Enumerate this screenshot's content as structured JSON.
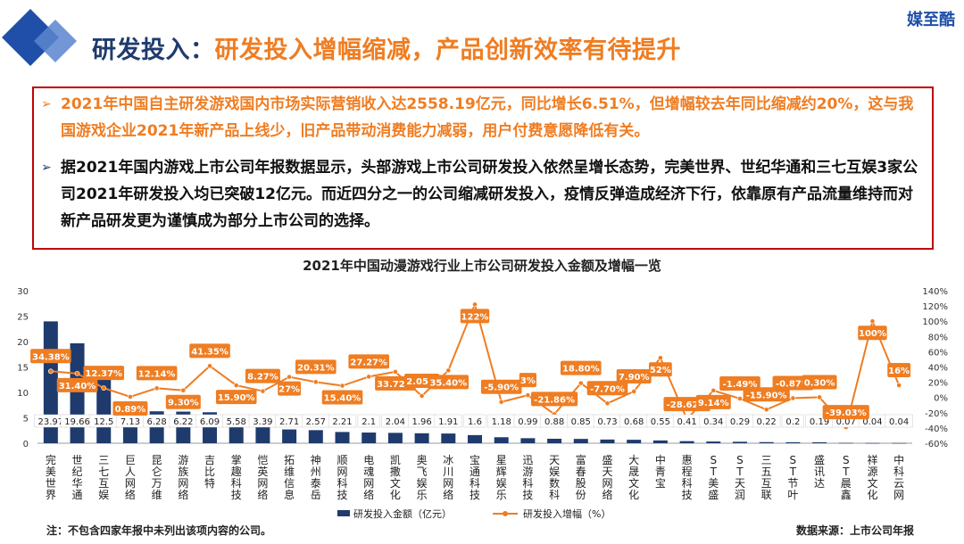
{
  "header": {
    "title_prefix": "研发投入：",
    "title_main": "研发投入增幅缩减，产品创新效率有待提升",
    "brand": "媒至酷"
  },
  "summary": {
    "bullets": [
      {
        "marker": "➢",
        "text": "2021年中国自主研发游戏国内市场实际营销收入达2558.19亿元，同比增长6.51%，但增幅较去年同比缩减约20%，这与我国游戏企业2021年新产品上线少，旧产品带动消费能力减弱，用户付费意愿降低有关。"
      },
      {
        "marker": "➢",
        "text": "据2021年国内游戏上市公司年报数据显示，头部游戏上市公司研发投入依然呈增长态势，完美世界、世纪华通和三七互娱3家公司2021年研发投入均已突破12亿元。而近四分之一的公司缩减研发投入，疫情反弹造成经济下行，依靠原有产品流量维持而对新产品研发更为谨慎成为部分上市公司的选择。"
      }
    ]
  },
  "footer": {
    "note": "注：不包含四家年报中未列出该项内容的公司。",
    "source": "数据来源：上市公司年报"
  },
  "colors": {
    "bar": "#1f3b6e",
    "line": "#ef7d22",
    "accent": "#ef7d22",
    "border": "#c00000"
  },
  "chart_data": {
    "type": "bar",
    "title": "2021年中国动漫游戏行业上市公司研发投入金额及增幅一览",
    "categories": [
      "完美世界",
      "世纪华通",
      "三七互娱",
      "巨人网络",
      "昆仑万维",
      "游族网络",
      "吉比特",
      "掌趣科技",
      "恺英网络",
      "拓维信息",
      "神州泰岳",
      "顺网科技",
      "电魂网络",
      "凯撒文化",
      "奥飞娱乐",
      "冰川网络",
      "宝通科技",
      "星辉娱乐",
      "迅游科技",
      "天娱数科",
      "富春股份",
      "盛天网络",
      "大晟文化",
      "中青宝",
      "惠程科技",
      "ST美盛",
      "ST天润",
      "三五互联",
      "ST节叶",
      "盛讯达",
      "ST晨鑫",
      "祥源文化",
      "中科云网"
    ],
    "series": [
      {
        "name": "研发投入金额（亿元）",
        "type": "bar",
        "axis": "left",
        "values": [
          23.97,
          19.66,
          12.5,
          7.13,
          6.28,
          6.22,
          6.09,
          5.58,
          3.39,
          2.71,
          2.57,
          2.21,
          2.1,
          2.04,
          1.96,
          1.91,
          1.6,
          1.18,
          0.99,
          0.88,
          0.85,
          0.73,
          0.68,
          0.55,
          0.41,
          0.34,
          0.29,
          0.22,
          0.2,
          0.19,
          0.07,
          0.04,
          0.04
        ],
        "labels": [
          "23.97",
          "19.66",
          "12.5",
          "7.13",
          "6.28",
          "6.22",
          "6.09",
          "5.58",
          "3.39",
          "2.71",
          "2.57",
          "2.21",
          "2.1",
          "2.04",
          "1.96",
          "1.91",
          "1.6",
          "1.18",
          "0.99",
          "0.88",
          "0.85",
          "0.73",
          "0.68",
          "0.55",
          "0.41",
          "0.34",
          "0.29",
          "0.22",
          "0.2",
          "0.19",
          "0.07",
          "0.04",
          "0.04"
        ]
      },
      {
        "name": "研发投入增幅（%）",
        "type": "line",
        "axis": "right",
        "values": [
          34.38,
          31.4,
          12.37,
          0.89,
          12.14,
          9.3,
          41.35,
          15.9,
          8.27,
          27,
          20.31,
          15.4,
          27.27,
          33.72,
          2.05,
          35.4,
          122,
          -5.9,
          3,
          -21.86,
          18.8,
          -7.7,
          7.9,
          52,
          -28.62,
          9.14,
          -1.49,
          -15.9,
          -0.87,
          0.3,
          -39.03,
          100,
          16
        ],
        "labels": [
          "34.38%",
          "31.40%",
          "12.37%",
          "0.89%",
          "12.14%",
          "9.30%",
          "41.35%",
          "15.90%",
          "8.27%",
          "27%",
          "20.31%",
          "15.40%",
          "27.27%",
          "33.72%",
          "2.05%",
          "35.40%",
          "122%",
          "-5.90%",
          "3%",
          "-21.86%",
          "18.80%",
          "-7.70%",
          "7.90%",
          "52%",
          "-28.62%",
          "9.14%",
          "-1.49%",
          "-15.90%",
          "-0.87%",
          "0.30%",
          "-39.03%",
          "100%",
          "16%"
        ]
      }
    ],
    "left_axis": {
      "min": 0,
      "max": 30,
      "ticks": [
        "0",
        "5",
        "10",
        "15",
        "20",
        "25",
        "30"
      ]
    },
    "right_axis": {
      "min": -60,
      "max": 140,
      "ticks": [
        "-60%",
        "-40%",
        "-20%",
        "0%",
        "20%",
        "40%",
        "60%",
        "80%",
        "100%",
        "120%",
        "140%"
      ]
    },
    "legend": {
      "position": "bottom",
      "bar_label": "研发投入金额（亿元）",
      "line_label": "研发投入增幅（%）"
    }
  }
}
